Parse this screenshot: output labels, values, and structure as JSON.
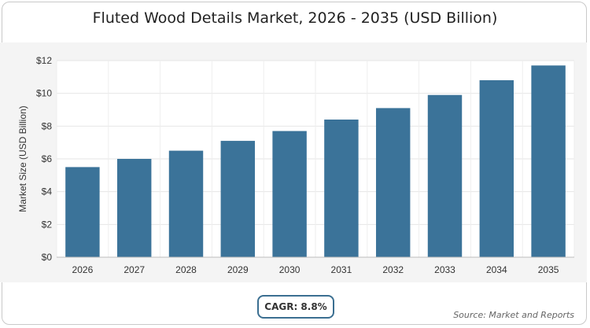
{
  "chart_data": {
    "type": "bar",
    "title": "Fluted Wood Details Market, 2026 - 2035 (USD Billion)",
    "xlabel": "",
    "ylabel": "Market Size (USD Billion)",
    "categories": [
      "2026",
      "2027",
      "2028",
      "2029",
      "2030",
      "2031",
      "2032",
      "2033",
      "2034",
      "2035"
    ],
    "values": [
      5.5,
      6.0,
      6.5,
      7.1,
      7.7,
      8.4,
      9.1,
      9.9,
      10.8,
      11.7
    ],
    "ylim": [
      0,
      12
    ],
    "yticks": [
      "$0",
      "$2",
      "$4",
      "$6",
      "$8",
      "$10",
      "$12"
    ],
    "grid": true,
    "bar_color": "#3b7399"
  },
  "annotations": {
    "cagr": "CAGR: 8.8%",
    "source": "Source: Market and Reports"
  }
}
